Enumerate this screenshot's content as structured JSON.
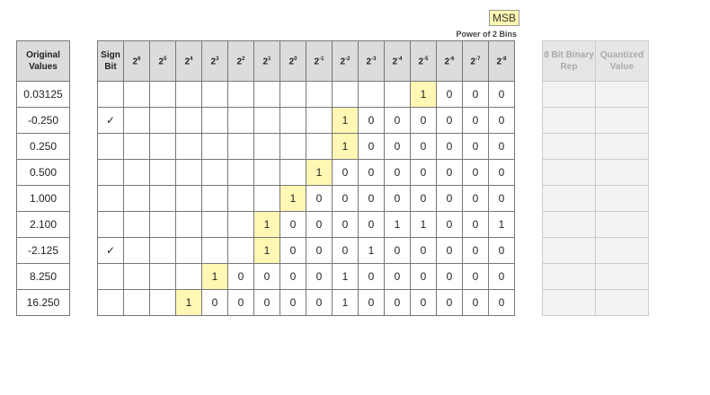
{
  "legend": {
    "msb_label": "MSB",
    "bins_label": "Power of 2 Bins",
    "msb_color": "#fff7b3"
  },
  "original_header": "Original Values",
  "sign_header": "Sign Bit",
  "bin_headers": [
    [
      "2",
      "6"
    ],
    [
      "2",
      "5"
    ],
    [
      "2",
      "4"
    ],
    [
      "2",
      "3"
    ],
    [
      "2",
      "2"
    ],
    [
      "2",
      "1"
    ],
    [
      "2",
      "0"
    ],
    [
      "2",
      "-1"
    ],
    [
      "2",
      "-2"
    ],
    [
      "2",
      "-3"
    ],
    [
      "2",
      "-4"
    ],
    [
      "2",
      "-5"
    ],
    [
      "2",
      "-6"
    ],
    [
      "2",
      "-7"
    ],
    [
      "2",
      "-8"
    ]
  ],
  "output_headers": [
    "8 Bit Binary Rep",
    "Quantized Value"
  ],
  "rows": [
    {
      "value": "0.03125",
      "sign": "",
      "msb": 11,
      "bits": [
        "",
        "",
        "",
        "",
        "",
        "",
        "",
        "",
        "",
        "",
        "",
        "1",
        "0",
        "0",
        "0"
      ]
    },
    {
      "value": "-0.250",
      "sign": "✓",
      "msb": 8,
      "bits": [
        "",
        "",
        "",
        "",
        "",
        "",
        "",
        "",
        "1",
        "0",
        "0",
        "0",
        "0",
        "0",
        "0"
      ]
    },
    {
      "value": "0.250",
      "sign": "",
      "msb": 8,
      "bits": [
        "",
        "",
        "",
        "",
        "",
        "",
        "",
        "",
        "1",
        "0",
        "0",
        "0",
        "0",
        "0",
        "0"
      ]
    },
    {
      "value": "0.500",
      "sign": "",
      "msb": 7,
      "bits": [
        "",
        "",
        "",
        "",
        "",
        "",
        "",
        "1",
        "0",
        "0",
        "0",
        "0",
        "0",
        "0",
        "0"
      ]
    },
    {
      "value": "1.000",
      "sign": "",
      "msb": 6,
      "bits": [
        "",
        "",
        "",
        "",
        "",
        "",
        "1",
        "0",
        "0",
        "0",
        "0",
        "0",
        "0",
        "0",
        "0"
      ]
    },
    {
      "value": "2.100",
      "sign": "",
      "msb": 5,
      "bits": [
        "",
        "",
        "",
        "",
        "",
        "1",
        "0",
        "0",
        "0",
        "0",
        "1",
        "1",
        "0",
        "0",
        "1"
      ]
    },
    {
      "value": "-2.125",
      "sign": "✓",
      "msb": 5,
      "bits": [
        "",
        "",
        "",
        "",
        "",
        "1",
        "0",
        "0",
        "0",
        "1",
        "0",
        "0",
        "0",
        "0",
        "0"
      ]
    },
    {
      "value": "8.250",
      "sign": "",
      "msb": 3,
      "bits": [
        "",
        "",
        "",
        "1",
        "0",
        "0",
        "0",
        "0",
        "1",
        "0",
        "0",
        "0",
        "0",
        "0",
        "0"
      ]
    },
    {
      "value": "16.250",
      "sign": "",
      "msb": 2,
      "bits": [
        "",
        "",
        "1",
        "0",
        "0",
        "0",
        "0",
        "0",
        "1",
        "0",
        "0",
        "0",
        "0",
        "0",
        "0"
      ]
    }
  ]
}
